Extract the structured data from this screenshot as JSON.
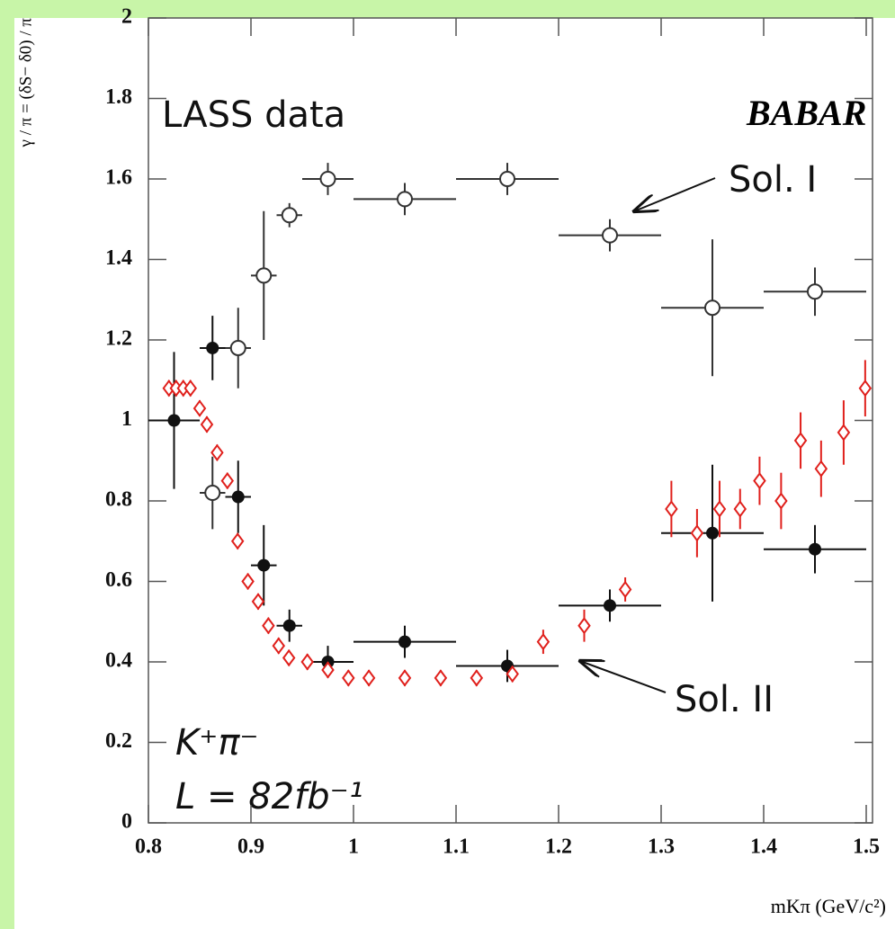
{
  "chart_data": {
    "type": "errorbar",
    "title": "BABAR",
    "x_label": "mKπ (GeV/c²)",
    "y_label": "γ / π = (δS− δ0) / π",
    "annotations": [
      "K⁺π⁻",
      "L = 82fb⁻¹"
    ],
    "xlim": [
      0.8,
      1.5
    ],
    "xticks": [
      0.8,
      0.9,
      1,
      1.1,
      1.2,
      1.3,
      1.4,
      1.5
    ],
    "ylim": [
      0,
      2
    ],
    "yticks": [
      0,
      0.2,
      0.4,
      0.6,
      0.8,
      1,
      1.2,
      1.4,
      1.6,
      1.8,
      2
    ],
    "series": [
      {
        "name": "Sol. I",
        "color": "#333333",
        "marker": "open-circle",
        "x": [
          0.8625,
          0.8875,
          0.9125,
          0.9375,
          0.975,
          1.05,
          1.15,
          1.25,
          1.35,
          1.45
        ],
        "xerr": [
          0.0125,
          0.0125,
          0.0125,
          0.0125,
          0.025,
          0.05,
          0.05,
          0.05,
          0.05,
          0.05
        ],
        "values": [
          0.82,
          1.18,
          1.36,
          1.51,
          1.6,
          1.55,
          1.6,
          1.46,
          1.28,
          1.32
        ],
        "yerr": [
          0.09,
          0.1,
          0.16,
          0.03,
          0.04,
          0.04,
          0.04,
          0.04,
          0.17,
          0.06
        ]
      },
      {
        "name": "Sol. II",
        "color": "#111111",
        "marker": "filled-circle",
        "x": [
          0.825,
          0.8625,
          0.8875,
          0.9125,
          0.9375,
          0.975,
          1.05,
          1.15,
          1.25,
          1.35,
          1.45
        ],
        "xerr": [
          0.025,
          0.0125,
          0.0125,
          0.0125,
          0.0125,
          0.025,
          0.05,
          0.05,
          0.05,
          0.05,
          0.05
        ],
        "values": [
          1.0,
          1.18,
          0.81,
          0.64,
          0.49,
          0.4,
          0.45,
          0.39,
          0.54,
          0.72,
          0.68
        ],
        "yerr": [
          0.17,
          0.08,
          0.09,
          0.1,
          0.04,
          0.04,
          0.04,
          0.04,
          0.04,
          0.17,
          0.06
        ]
      },
      {
        "name": "LASS data",
        "color": "#e0201c",
        "marker": "open-diamond",
        "x": [
          0.82,
          0.827,
          0.834,
          0.841,
          0.85,
          0.857,
          0.867,
          0.877,
          0.887,
          0.897,
          0.907,
          0.917,
          0.927,
          0.937,
          0.955,
          0.975,
          0.995,
          1.015,
          1.05,
          1.085,
          1.12,
          1.155,
          1.185,
          1.225,
          1.265,
          1.31,
          1.335,
          1.357,
          1.377,
          1.396,
          1.417,
          1.436,
          1.456,
          1.478,
          1.499
        ],
        "values": [
          1.08,
          1.08,
          1.08,
          1.08,
          1.03,
          0.99,
          0.92,
          0.85,
          0.7,
          0.6,
          0.55,
          0.49,
          0.44,
          0.41,
          0.4,
          0.38,
          0.36,
          0.36,
          0.36,
          0.36,
          0.36,
          0.37,
          0.45,
          0.49,
          0.58,
          0.78,
          0.72,
          0.78,
          0.78,
          0.85,
          0.8,
          0.95,
          0.88,
          0.97,
          1.08
        ],
        "yerr": [
          0.02,
          0.02,
          0.02,
          0.02,
          0.02,
          0.02,
          0.02,
          0.02,
          0.02,
          0.02,
          0.02,
          0.02,
          0.02,
          0.02,
          0.02,
          0.02,
          0.02,
          0.02,
          0.02,
          0.02,
          0.02,
          0.02,
          0.03,
          0.04,
          0.03,
          0.07,
          0.06,
          0.07,
          0.05,
          0.06,
          0.07,
          0.07,
          0.07,
          0.08,
          0.07
        ]
      }
    ]
  }
}
